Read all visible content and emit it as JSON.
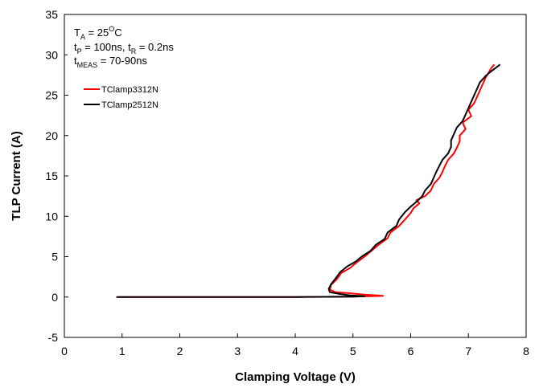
{
  "chart_data": {
    "type": "line",
    "xlabel": "Clamping Voltage (V)",
    "ylabel": "TLP Current (A)",
    "xlim": [
      0,
      8
    ],
    "ylim": [
      -5,
      35
    ],
    "xticks": [
      0,
      1,
      2,
      3,
      4,
      5,
      6,
      7,
      8
    ],
    "yticks": [
      -5,
      0,
      5,
      10,
      15,
      20,
      25,
      30,
      35
    ],
    "grid": false,
    "legend_position": "top-left",
    "annotation": {
      "line1": {
        "main": "T",
        "sub": "A",
        "rest": " = 25",
        "sup": "O",
        "tail": "C"
      },
      "line2": {
        "p1": "t",
        "sub1": "P",
        "mid": " = 100ns, t",
        "sub2": "R",
        "tail": " = 0.2ns"
      },
      "line3": {
        "p1": "t",
        "sub1": "MEAS",
        "tail": " = 70-90ns"
      }
    },
    "series": [
      {
        "name": "TClamp3312N",
        "color": "#ff0000",
        "points": [
          [
            0.95,
            0
          ],
          [
            2.0,
            0
          ],
          [
            3.0,
            0
          ],
          [
            4.0,
            0
          ],
          [
            4.5,
            0.02
          ],
          [
            5.0,
            0.05
          ],
          [
            5.3,
            0.1
          ],
          [
            5.52,
            0.15
          ],
          [
            5.2,
            0.3
          ],
          [
            4.9,
            0.5
          ],
          [
            4.7,
            0.6
          ],
          [
            4.6,
            0.9
          ],
          [
            4.62,
            1.5
          ],
          [
            4.72,
            2.2
          ],
          [
            4.8,
            3.0
          ],
          [
            4.95,
            3.6
          ],
          [
            5.05,
            4.2
          ],
          [
            5.2,
            5.0
          ],
          [
            5.3,
            5.6
          ],
          [
            5.45,
            6.5
          ],
          [
            5.6,
            7.3
          ],
          [
            5.65,
            8.0
          ],
          [
            5.8,
            8.8
          ],
          [
            5.9,
            9.6
          ],
          [
            6.0,
            10.4
          ],
          [
            6.05,
            11.0
          ],
          [
            6.15,
            11.6
          ],
          [
            6.1,
            12.0
          ],
          [
            6.25,
            12.5
          ],
          [
            6.35,
            13.2
          ],
          [
            6.4,
            14.0
          ],
          [
            6.5,
            14.8
          ],
          [
            6.55,
            15.5
          ],
          [
            6.6,
            16.3
          ],
          [
            6.65,
            17.0
          ],
          [
            6.75,
            17.8
          ],
          [
            6.8,
            18.5
          ],
          [
            6.85,
            19.3
          ],
          [
            6.85,
            20.0
          ],
          [
            6.95,
            20.8
          ],
          [
            6.9,
            21.6
          ],
          [
            7.05,
            22.4
          ],
          [
            7.0,
            23.2
          ],
          [
            7.1,
            24.0
          ],
          [
            7.15,
            24.8
          ],
          [
            7.2,
            25.6
          ],
          [
            7.25,
            26.4
          ],
          [
            7.3,
            27.2
          ],
          [
            7.35,
            27.8
          ],
          [
            7.4,
            28.4
          ],
          [
            7.45,
            28.8
          ]
        ]
      },
      {
        "name": "TClamp2512N",
        "color": "#000000",
        "points": [
          [
            0.9,
            0
          ],
          [
            2.0,
            0
          ],
          [
            3.0,
            0
          ],
          [
            4.0,
            0
          ],
          [
            4.5,
            0.02
          ],
          [
            5.0,
            0.05
          ],
          [
            5.2,
            0.1
          ],
          [
            4.95,
            0.2
          ],
          [
            4.75,
            0.4
          ],
          [
            4.6,
            0.6
          ],
          [
            4.58,
            1.0
          ],
          [
            4.62,
            1.6
          ],
          [
            4.7,
            2.3
          ],
          [
            4.78,
            3.1
          ],
          [
            4.9,
            3.8
          ],
          [
            5.05,
            4.4
          ],
          [
            5.15,
            5.0
          ],
          [
            5.3,
            5.7
          ],
          [
            5.4,
            6.5
          ],
          [
            5.55,
            7.2
          ],
          [
            5.6,
            8.0
          ],
          [
            5.75,
            8.8
          ],
          [
            5.8,
            9.6
          ],
          [
            5.9,
            10.5
          ],
          [
            6.0,
            11.2
          ],
          [
            6.1,
            11.8
          ],
          [
            6.2,
            12.5
          ],
          [
            6.25,
            13.2
          ],
          [
            6.35,
            14.0
          ],
          [
            6.4,
            14.8
          ],
          [
            6.45,
            15.6
          ],
          [
            6.5,
            16.3
          ],
          [
            6.55,
            17.0
          ],
          [
            6.65,
            17.8
          ],
          [
            6.7,
            18.6
          ],
          [
            6.7,
            19.4
          ],
          [
            6.75,
            20.2
          ],
          [
            6.8,
            21.0
          ],
          [
            6.9,
            21.8
          ],
          [
            6.95,
            22.6
          ],
          [
            7.0,
            23.4
          ],
          [
            7.05,
            24.2
          ],
          [
            7.1,
            25.0
          ],
          [
            7.15,
            25.8
          ],
          [
            7.2,
            26.6
          ],
          [
            7.3,
            27.4
          ],
          [
            7.4,
            28.0
          ],
          [
            7.55,
            28.8
          ]
        ]
      }
    ]
  }
}
